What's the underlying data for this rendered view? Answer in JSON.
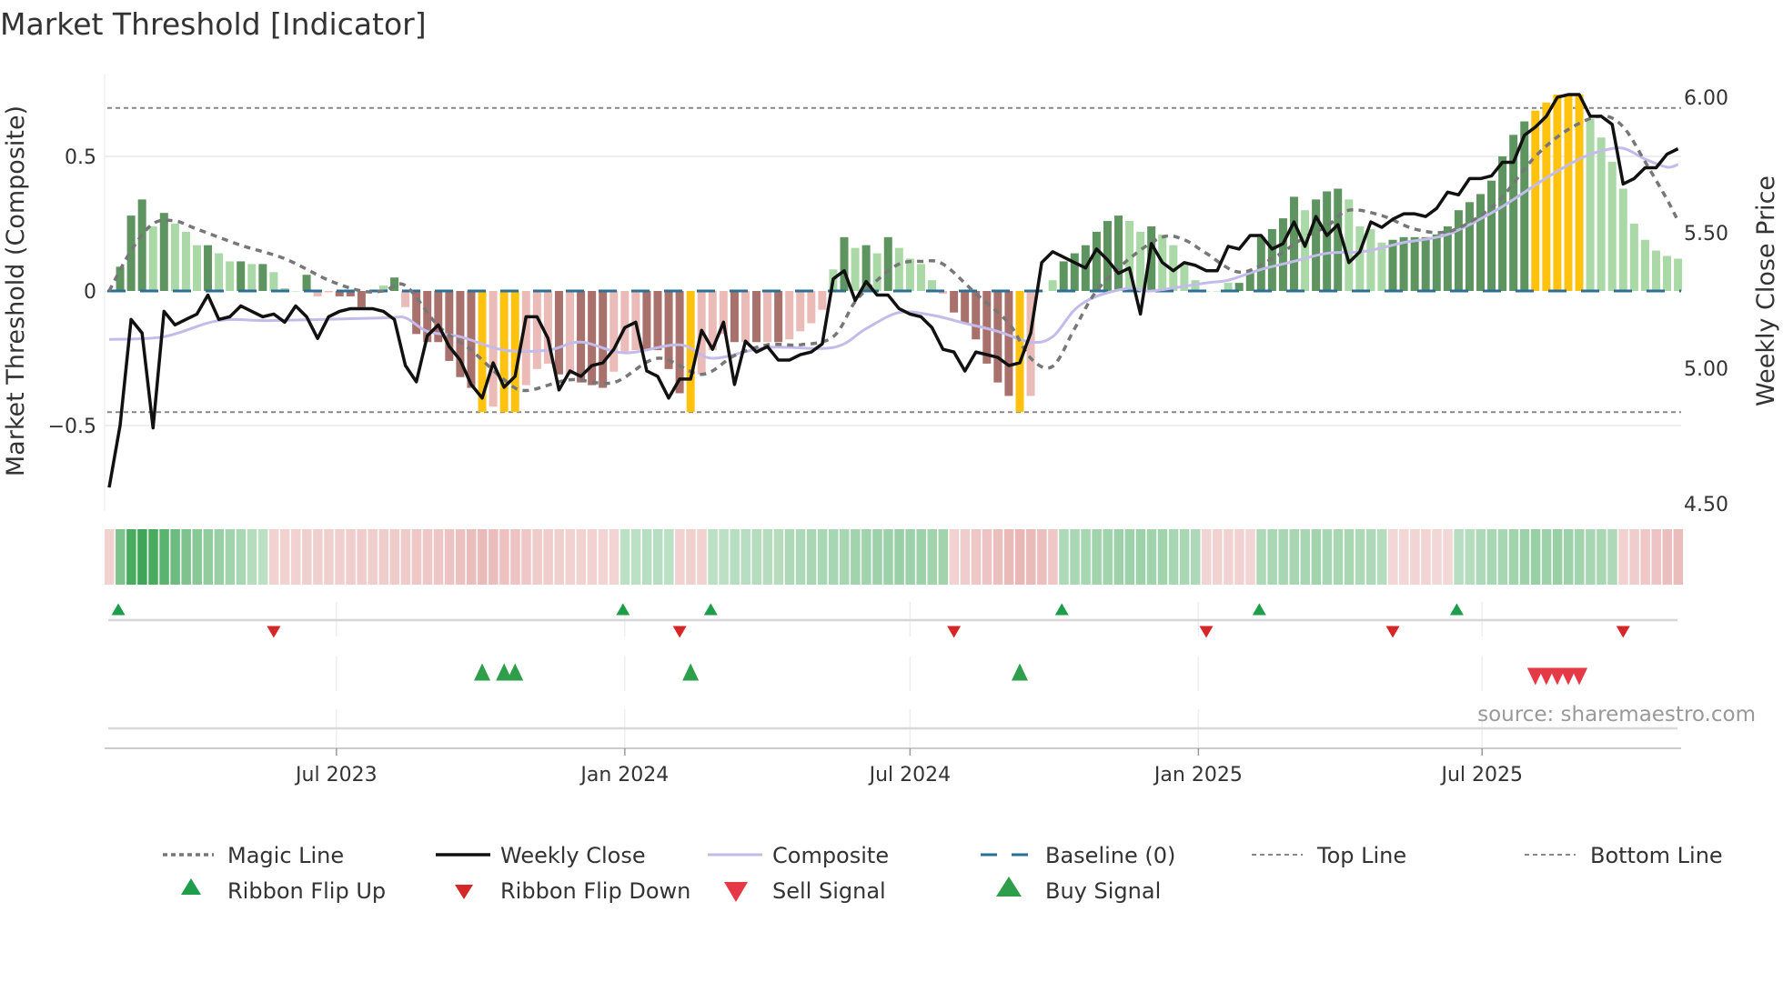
{
  "chart_data": {
    "type": "bar",
    "title": "Market Threshold [Indicator]",
    "ylabel_left": "Market Threshold (Composite)",
    "ylabel_right": "Weekly Close Price",
    "source": "source: sharemaestro.com",
    "frequency": "weekly",
    "start_date": "2023-02-06",
    "ylim_left": [
      -0.75,
      0.88
    ],
    "ylim_right": [
      4.45,
      6.08
    ],
    "left_ticks": [
      {
        "v": 0.5,
        "label": "0.5"
      },
      {
        "v": 0,
        "label": "0"
      },
      {
        "v": -0.5,
        "label": "−0.5"
      }
    ],
    "right_ticks": [
      {
        "v": 6.0,
        "label": "6.00"
      },
      {
        "v": 5.5,
        "label": "5.50"
      },
      {
        "v": 5.0,
        "label": "5.00"
      },
      {
        "v": 4.5,
        "label": "4.50"
      }
    ],
    "x_ticks": [
      {
        "date": "2023-07-01",
        "label": "Jul 2023"
      },
      {
        "date": "2024-01-01",
        "label": "Jan 2024"
      },
      {
        "date": "2024-07-01",
        "label": "Jul 2024"
      },
      {
        "date": "2025-01-01",
        "label": "Jan 2025"
      },
      {
        "date": "2025-07-01",
        "label": "Jul 2025"
      }
    ],
    "top_line": 0.68,
    "bottom_line": -0.45,
    "baseline": 0,
    "composite_bars": [
      0,
      0.09,
      0.28,
      0.34,
      0.24,
      0.29,
      0.25,
      0.22,
      0.17,
      0.17,
      0.14,
      0.11,
      0.11,
      0.1,
      0.1,
      0.07,
      0.01,
      0,
      0.06,
      -0.02,
      -0.005,
      -0.02,
      -0.02,
      -0.06,
      0,
      0.02,
      0.05,
      -0.06,
      -0.16,
      -0.19,
      -0.19,
      -0.26,
      -0.32,
      -0.36,
      -0.45,
      -0.43,
      -0.45,
      -0.45,
      -0.35,
      -0.29,
      -0.27,
      -0.31,
      -0.31,
      -0.34,
      -0.35,
      -0.36,
      -0.3,
      -0.23,
      -0.22,
      -0.22,
      -0.22,
      -0.29,
      -0.38,
      -0.45,
      -0.31,
      -0.22,
      -0.16,
      -0.19,
      -0.19,
      -0.19,
      -0.19,
      -0.19,
      -0.18,
      -0.15,
      -0.12,
      -0.07,
      0.08,
      0.2,
      0.16,
      0.17,
      0.14,
      0.2,
      0.16,
      0.12,
      0.1,
      0.04,
      -0.01,
      -0.08,
      -0.12,
      -0.18,
      -0.27,
      -0.34,
      -0.39,
      -0.45,
      -0.39,
      0,
      0.04,
      0.11,
      0.14,
      0.17,
      0.22,
      0.26,
      0.28,
      0.26,
      0.22,
      0.24,
      0.21,
      0.17,
      0.1,
      0.04,
      0,
      0,
      0.03,
      0.03,
      0.07,
      0.2,
      0.23,
      0.27,
      0.35,
      0.3,
      0.34,
      0.37,
      0.38,
      0.34,
      0.24,
      0.23,
      0.18,
      0.19,
      0.2,
      0.2,
      0.2,
      0.21,
      0.24,
      0.3,
      0.33,
      0.36,
      0.41,
      0.5,
      0.58,
      0.63,
      0.67,
      0.7,
      0.73,
      0.73,
      0.73,
      0.64,
      0.57,
      0.48,
      0.38,
      0.25,
      0.19,
      0.15,
      0.13,
      0.12
    ],
    "bar_states": [
      "n",
      "g",
      "g",
      "g",
      "lg",
      "g",
      "lg",
      "lg",
      "lg",
      "g",
      "lg",
      "lg",
      "g",
      "lg",
      "g",
      "lg",
      "lg",
      "n",
      "g",
      "lr",
      "lr",
      "r",
      "r",
      "r",
      "n",
      "lg",
      "g",
      "lr",
      "r",
      "r",
      "r",
      "r",
      "r",
      "r",
      "y",
      "lr",
      "y",
      "y",
      "lr",
      "lr",
      "lr",
      "r",
      "lr",
      "r",
      "r",
      "r",
      "lr",
      "lr",
      "lr",
      "r",
      "r",
      "r",
      "r",
      "y",
      "lr",
      "lr",
      "lr",
      "r",
      "lr",
      "r",
      "lr",
      "r",
      "lr",
      "lr",
      "lr",
      "lr",
      "lg",
      "g",
      "lg",
      "g",
      "lg",
      "g",
      "lg",
      "lg",
      "lg",
      "lg",
      "lr",
      "r",
      "r",
      "r",
      "r",
      "r",
      "r",
      "y",
      "lr",
      "n",
      "lg",
      "g",
      "g",
      "g",
      "g",
      "g",
      "g",
      "lg",
      "lg",
      "g",
      "lg",
      "lg",
      "lg",
      "lg",
      "n",
      "n",
      "lg",
      "g",
      "g",
      "g",
      "g",
      "g",
      "g",
      "lg",
      "g",
      "g",
      "g",
      "lg",
      "lg",
      "lg",
      "lg",
      "g",
      "g",
      "g",
      "g",
      "g",
      "g",
      "g",
      "g",
      "g",
      "g",
      "g",
      "g",
      "g",
      "y",
      "y",
      "y",
      "y",
      "y",
      "lg",
      "lg",
      "lg",
      "lg",
      "lg",
      "lg",
      "lg",
      "lg",
      "lg"
    ],
    "bar_colors": {
      "g": "#5e9460",
      "lg": "#aad8a7",
      "r": "#a8716c",
      "lr": "#ebbcb7",
      "y": "#ffc20e",
      "n": "#aad8a7"
    },
    "weekly_close": [
      4.56,
      4.79,
      5.18,
      5.13,
      4.78,
      5.21,
      5.16,
      5.18,
      5.2,
      5.27,
      5.18,
      5.19,
      5.23,
      5.21,
      5.19,
      5.2,
      5.17,
      5.23,
      5.19,
      5.11,
      5.19,
      5.21,
      5.22,
      5.22,
      5.22,
      5.21,
      5.18,
      5.01,
      4.95,
      5.12,
      5.16,
      5.08,
      5.03,
      4.94,
      4.89,
      5.02,
      4.93,
      4.97,
      5.19,
      5.19,
      5.11,
      4.92,
      4.99,
      4.97,
      5.01,
      5.02,
      5.07,
      5.15,
      5.17,
      4.99,
      4.97,
      4.89,
      4.96,
      4.96,
      5.14,
      5.07,
      5.17,
      4.94,
      5.1,
      5.06,
      5.08,
      5.03,
      5.03,
      5.05,
      5.06,
      5.09,
      5.33,
      5.36,
      5.25,
      5.32,
      5.27,
      5.27,
      5.22,
      5.2,
      5.19,
      5.15,
      5.07,
      5.06,
      4.99,
      5.06,
      5.05,
      5.04,
      5.01,
      5.02,
      5.13,
      5.39,
      5.43,
      5.41,
      5.39,
      5.37,
      5.44,
      5.4,
      5.35,
      5.37,
      5.2,
      5.46,
      5.39,
      5.36,
      5.39,
      5.38,
      5.36,
      5.36,
      5.45,
      5.44,
      5.49,
      5.49,
      5.44,
      5.46,
      5.54,
      5.45,
      5.56,
      5.49,
      5.53,
      5.39,
      5.43,
      5.54,
      5.52,
      5.55,
      5.57,
      5.57,
      5.56,
      5.59,
      5.65,
      5.64,
      5.7,
      5.7,
      5.71,
      5.76,
      5.76,
      5.86,
      5.89,
      5.93,
      6.0,
      6.01,
      6.01,
      5.93,
      5.93,
      5.9,
      5.68,
      5.7,
      5.74,
      5.74,
      5.79,
      5.81
    ],
    "composite_line": [
      [
        0,
        -0.18
      ],
      [
        5,
        -0.17
      ],
      [
        10,
        -0.11
      ],
      [
        15,
        -0.11
      ],
      [
        25,
        -0.1
      ],
      [
        27,
        -0.1
      ],
      [
        29,
        -0.15
      ],
      [
        32,
        -0.17
      ],
      [
        36,
        -0.22
      ],
      [
        40,
        -0.22
      ],
      [
        43,
        -0.19
      ],
      [
        47,
        -0.23
      ],
      [
        52,
        -0.2
      ],
      [
        55,
        -0.25
      ],
      [
        60,
        -0.21
      ],
      [
        66,
        -0.21
      ],
      [
        69,
        -0.14
      ],
      [
        72,
        -0.08
      ],
      [
        75,
        -0.09
      ],
      [
        78,
        -0.12
      ],
      [
        81,
        -0.15
      ],
      [
        84,
        -0.19
      ],
      [
        86,
        -0.17
      ],
      [
        88,
        -0.07
      ],
      [
        90,
        -0.02
      ],
      [
        93,
        0.01
      ],
      [
        95,
        0.0
      ],
      [
        100,
        0.03
      ],
      [
        102,
        0.04
      ],
      [
        105,
        0.08
      ],
      [
        108,
        0.11
      ],
      [
        111,
        0.14
      ],
      [
        114,
        0.145
      ],
      [
        116,
        0.16
      ],
      [
        118,
        0.18
      ],
      [
        122,
        0.21
      ],
      [
        126,
        0.29
      ],
      [
        128,
        0.34
      ],
      [
        131,
        0.42
      ],
      [
        134,
        0.49
      ],
      [
        136,
        0.52
      ],
      [
        138,
        0.53
      ],
      [
        140,
        0.49
      ],
      [
        142,
        0.46
      ],
      [
        143,
        0.47
      ]
    ],
    "magic_line": [
      [
        0,
        0
      ],
      [
        2,
        0.15
      ],
      [
        4,
        0.25
      ],
      [
        6,
        0.26
      ],
      [
        8,
        0.23
      ],
      [
        12,
        0.17
      ],
      [
        16,
        0.12
      ],
      [
        20,
        0.04
      ],
      [
        23,
        0
      ],
      [
        25,
        0
      ],
      [
        27,
        0.02
      ],
      [
        30,
        -0.13
      ],
      [
        33,
        -0.22
      ],
      [
        36,
        -0.33
      ],
      [
        38,
        -0.37
      ],
      [
        42,
        -0.33
      ],
      [
        46,
        -0.34
      ],
      [
        50,
        -0.25
      ],
      [
        54,
        -0.31
      ],
      [
        57,
        -0.24
      ],
      [
        60,
        -0.2
      ],
      [
        63,
        -0.2
      ],
      [
        66,
        -0.17
      ],
      [
        68,
        -0.04
      ],
      [
        70,
        0.04
      ],
      [
        72,
        0.1
      ],
      [
        74,
        0.11
      ],
      [
        76,
        0.1
      ],
      [
        79,
        -0.01
      ],
      [
        82,
        -0.12
      ],
      [
        84,
        -0.25
      ],
      [
        86,
        -0.28
      ],
      [
        88,
        -0.14
      ],
      [
        90,
        0
      ],
      [
        93,
        0.12
      ],
      [
        96,
        0.2
      ],
      [
        98,
        0.19
      ],
      [
        100,
        0.14
      ],
      [
        103,
        0.07
      ],
      [
        106,
        0.12
      ],
      [
        109,
        0.2
      ],
      [
        111,
        0.24
      ],
      [
        113,
        0.3
      ],
      [
        116,
        0.28
      ],
      [
        119,
        0.23
      ],
      [
        122,
        0.22
      ],
      [
        125,
        0.28
      ],
      [
        127,
        0.35
      ],
      [
        130,
        0.5
      ],
      [
        133,
        0.6
      ],
      [
        136,
        0.65
      ],
      [
        138,
        0.61
      ],
      [
        140,
        0.48
      ],
      [
        142,
        0.34
      ],
      [
        143,
        0.26
      ]
    ],
    "ribbon": [
      -0.2,
      0.55,
      0.85,
      0.9,
      0.85,
      0.75,
      0.65,
      0.55,
      0.5,
      0.45,
      0.4,
      0.35,
      0.3,
      0.25,
      0.2,
      -0.2,
      -0.2,
      -0.2,
      -0.22,
      -0.22,
      -0.22,
      -0.22,
      -0.25,
      -0.25,
      -0.25,
      -0.25,
      -0.28,
      -0.28,
      -0.3,
      -0.3,
      -0.32,
      -0.35,
      -0.38,
      -0.42,
      -0.45,
      -0.42,
      -0.38,
      -0.35,
      -0.3,
      -0.28,
      -0.25,
      -0.22,
      -0.2,
      -0.2,
      -0.2,
      -0.18,
      -0.18,
      0.2,
      0.2,
      0.22,
      0.22,
      0.2,
      -0.2,
      -0.22,
      -0.2,
      0.2,
      0.2,
      0.22,
      0.22,
      0.25,
      0.25,
      0.25,
      0.28,
      0.28,
      0.3,
      0.3,
      0.32,
      0.32,
      0.35,
      0.35,
      0.38,
      0.38,
      0.4,
      0.38,
      0.38,
      0.35,
      0.35,
      -0.2,
      -0.25,
      -0.3,
      -0.35,
      -0.4,
      -0.45,
      -0.48,
      -0.45,
      -0.4,
      -0.3,
      0.28,
      0.3,
      0.32,
      0.35,
      0.35,
      0.38,
      0.38,
      0.38,
      0.35,
      0.35,
      0.32,
      0.3,
      0.28,
      -0.18,
      -0.2,
      -0.2,
      -0.2,
      -0.18,
      0.28,
      0.3,
      0.32,
      0.32,
      0.32,
      0.35,
      0.32,
      0.3,
      0.3,
      0.28,
      0.28,
      0.25,
      -0.15,
      -0.15,
      -0.18,
      -0.18,
      -0.15,
      -0.15,
      0.22,
      0.25,
      0.28,
      0.3,
      0.32,
      0.35,
      0.38,
      0.4,
      0.38,
      0.4,
      0.38,
      0.35,
      0.32,
      0.3,
      0.28,
      -0.2,
      -0.25,
      -0.3,
      -0.35,
      -0.4,
      -0.42
    ],
    "ribbon_flip_up_weeks": [
      1,
      47,
      55,
      87,
      105,
      123
    ],
    "ribbon_flip_down_weeks": [
      15,
      52,
      77,
      100,
      117,
      138
    ],
    "buy_signal_weeks": [
      34,
      36,
      37,
      53,
      83
    ],
    "sell_signal_weeks": [
      130,
      131,
      132,
      133,
      134
    ],
    "colors": {
      "weekly_close": "#111111",
      "composite": "#c3bbea",
      "magic": "#777777",
      "baseline": "#2b6e96",
      "guide": "#888888",
      "flip_up": "#1e9e4a",
      "flip_down": "#d62728",
      "buy": "#2e9e4a",
      "sell": "#e63946"
    },
    "legend": [
      {
        "key": "magic",
        "label": "Magic Line"
      },
      {
        "key": "close",
        "label": "Weekly Close"
      },
      {
        "key": "composite",
        "label": "Composite"
      },
      {
        "key": "baseline",
        "label": "Baseline (0)"
      },
      {
        "key": "top",
        "label": "Top Line"
      },
      {
        "key": "bottom",
        "label": "Bottom Line"
      },
      {
        "key": "flipup",
        "label": "Ribbon Flip Up"
      },
      {
        "key": "flipdown",
        "label": "Ribbon Flip Down"
      },
      {
        "key": "sell",
        "label": "Sell Signal"
      },
      {
        "key": "buy",
        "label": "Buy Signal"
      }
    ]
  }
}
